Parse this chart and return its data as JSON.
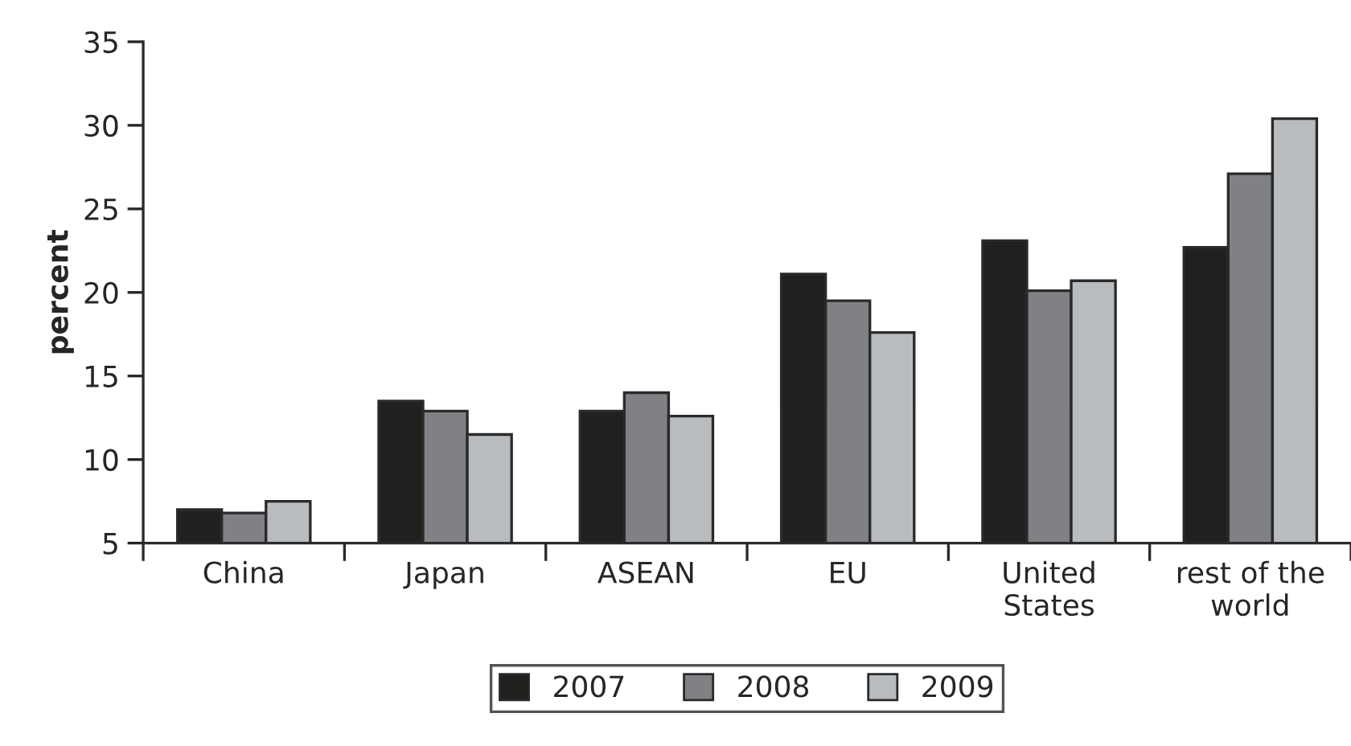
{
  "chart_data": {
    "type": "bar",
    "ylabel": "percent",
    "categories": [
      "China",
      "Japan",
      "ASEAN",
      "EU",
      "United\nStates",
      "rest of the\nworld"
    ],
    "series": [
      {
        "name": "2007",
        "color": "#21201e",
        "values": [
          7.0,
          13.5,
          12.9,
          21.1,
          23.1,
          22.7
        ]
      },
      {
        "name": "2008",
        "color": "#808184",
        "values": [
          6.8,
          12.9,
          14.0,
          19.5,
          20.1,
          27.1
        ]
      },
      {
        "name": "2009",
        "color": "#b9bcbf",
        "values": [
          7.5,
          11.5,
          12.6,
          17.6,
          20.7,
          30.4
        ]
      }
    ],
    "ylim": [
      5,
      35
    ],
    "yticks": [
      5,
      10,
      15,
      20,
      25,
      30,
      35
    ],
    "grid": false,
    "legend": "bottom"
  }
}
